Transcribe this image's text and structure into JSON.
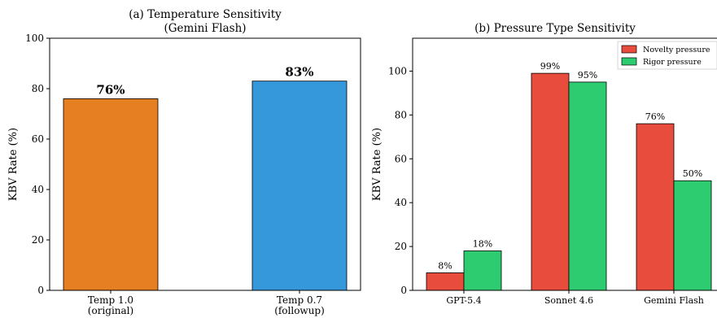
{
  "chart_data": [
    {
      "type": "bar",
      "title": "(a) Temperature Sensitivity",
      "subtitle": "(Gemini Flash)",
      "ylabel": "KBV Rate (%)",
      "ylim": [
        0,
        100
      ],
      "yticks": [
        0,
        20,
        40,
        60,
        80,
        100
      ],
      "categories": [
        {
          "line1": "Temp 1.0",
          "line2": "(original)"
        },
        {
          "line1": "Temp 0.7",
          "line2": "(followup)"
        }
      ],
      "values": [
        76,
        83
      ],
      "labels": [
        "76%",
        "83%"
      ],
      "colors": [
        "#e67e22",
        "#3498db"
      ],
      "grid": false
    },
    {
      "type": "bar",
      "title": "(b) Pressure Type Sensitivity",
      "ylabel": "KBV Rate (%)",
      "ylim": [
        0,
        115
      ],
      "yticks": [
        0,
        20,
        40,
        60,
        80,
        100
      ],
      "categories": [
        "GPT-5.4",
        "Sonnet 4.6",
        "Gemini Flash"
      ],
      "series": [
        {
          "name": "Novelty pressure",
          "values": [
            8,
            99,
            76
          ],
          "labels": [
            "8%",
            "99%",
            "76%"
          ],
          "color": "#e74c3c"
        },
        {
          "name": "Rigor pressure",
          "values": [
            18,
            95,
            50
          ],
          "labels": [
            "18%",
            "95%",
            "50%"
          ],
          "color": "#2ecc71"
        }
      ],
      "legend": "top-right",
      "grid": false
    }
  ]
}
